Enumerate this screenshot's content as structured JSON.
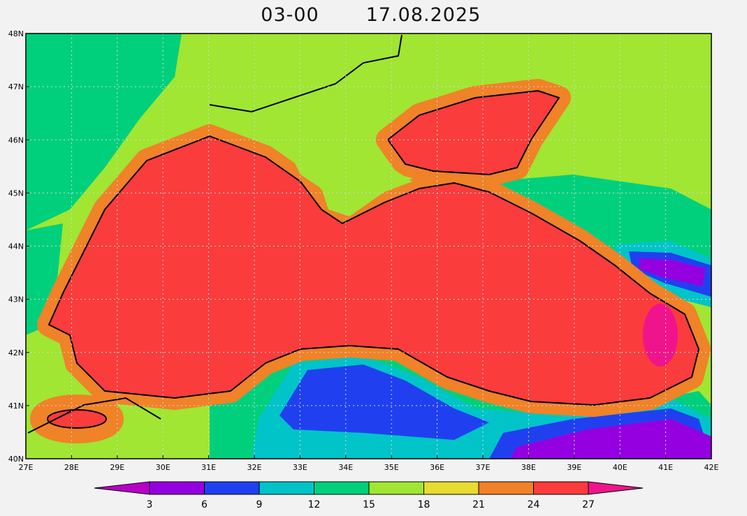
{
  "title": "03-00",
  "date": "17.08.2025",
  "lat_labels": [
    "48N",
    "47N",
    "46N",
    "45N",
    "44N",
    "43N",
    "42N",
    "41N",
    "40N"
  ],
  "lon_labels": [
    "27E",
    "28E",
    "29E",
    "30E",
    "31E",
    "32E",
    "33E",
    "34E",
    "35E",
    "36E",
    "37E",
    "38E",
    "39E",
    "40E",
    "41E",
    "42E"
  ],
  "colorbar": {
    "colors": [
      "#b800c8",
      "#9400e0",
      "#2040f0",
      "#00c4c8",
      "#00d07c",
      "#a0e632",
      "#e6dc32",
      "#f08228",
      "#fa3c3c",
      "#f0148c"
    ],
    "ticks": [
      3,
      6,
      9,
      12,
      15,
      18,
      21,
      24,
      27
    ]
  }
}
